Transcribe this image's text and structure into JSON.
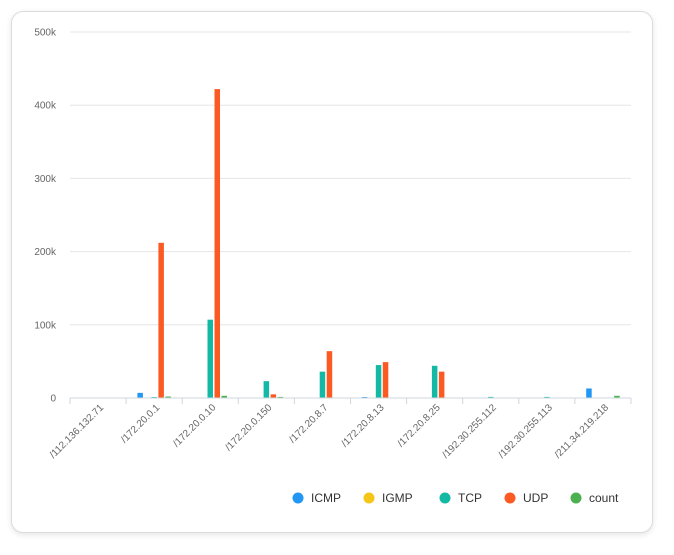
{
  "chart_data": {
    "type": "bar",
    "categories": [
      "/112.136.132.71",
      "/172.20.0.1",
      "/172.20.0.10",
      "/172.20.0.150",
      "/172.20.8.7",
      "/172.20.8.13",
      "/172.20.8.25",
      "/192.30.255.112",
      "/192.30.255.113",
      "/211.34.219.218"
    ],
    "series": [
      {
        "name": "ICMP",
        "color": "#2196f3",
        "values": [
          0,
          7000,
          0,
          0,
          0,
          1000,
          0,
          0,
          0,
          13000
        ]
      },
      {
        "name": "IGMP",
        "color": "#f5c518",
        "values": [
          0,
          0,
          0,
          0,
          0,
          0,
          0,
          0,
          0,
          0
        ]
      },
      {
        "name": "TCP",
        "color": "#13b9a4",
        "values": [
          0,
          1000,
          107000,
          23000,
          36000,
          45000,
          44000,
          1500,
          1500,
          0
        ]
      },
      {
        "name": "UDP",
        "color": "#fb5a22",
        "values": [
          0,
          212000,
          422000,
          5000,
          64000,
          49000,
          36000,
          0,
          0,
          0
        ]
      },
      {
        "name": "count",
        "color": "#4caf50",
        "values": [
          0,
          2000,
          3000,
          1500,
          0,
          0,
          0,
          0,
          0,
          3000
        ]
      }
    ],
    "ylim": [
      0,
      500000
    ],
    "yticks": [
      "0",
      "100k",
      "200k",
      "300k",
      "400k",
      "500k"
    ],
    "grid": true,
    "legend_position": "bottom-right"
  }
}
